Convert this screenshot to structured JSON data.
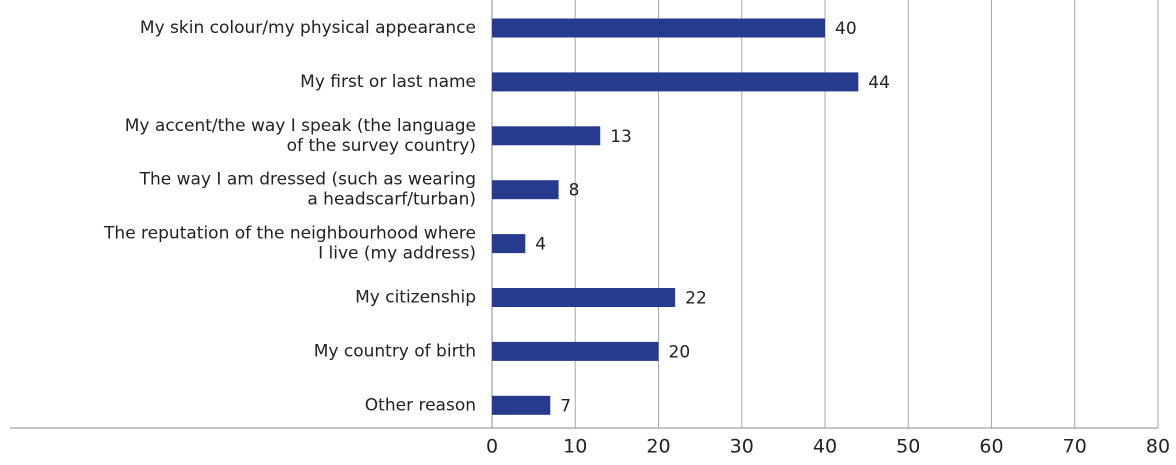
{
  "chart_data": {
    "type": "hbar",
    "categories": [
      "My skin colour/my physical appearance",
      "My first or last name",
      "My accent/the way I speak (the language\nof the survey country)",
      "The way I am dressed (such as wearing\na headscarf/turban)",
      "The reputation of the neighbourhood where\nI live (my address)",
      "My citizenship",
      "My country of birth",
      "Other reason"
    ],
    "values": [
      40,
      44,
      13,
      8,
      4,
      22,
      20,
      7
    ],
    "color": "#273b8e",
    "xlim": [
      0,
      80
    ],
    "xticks": [
      0,
      10,
      20,
      30,
      40,
      50,
      60,
      70,
      80
    ],
    "grid": true
  }
}
